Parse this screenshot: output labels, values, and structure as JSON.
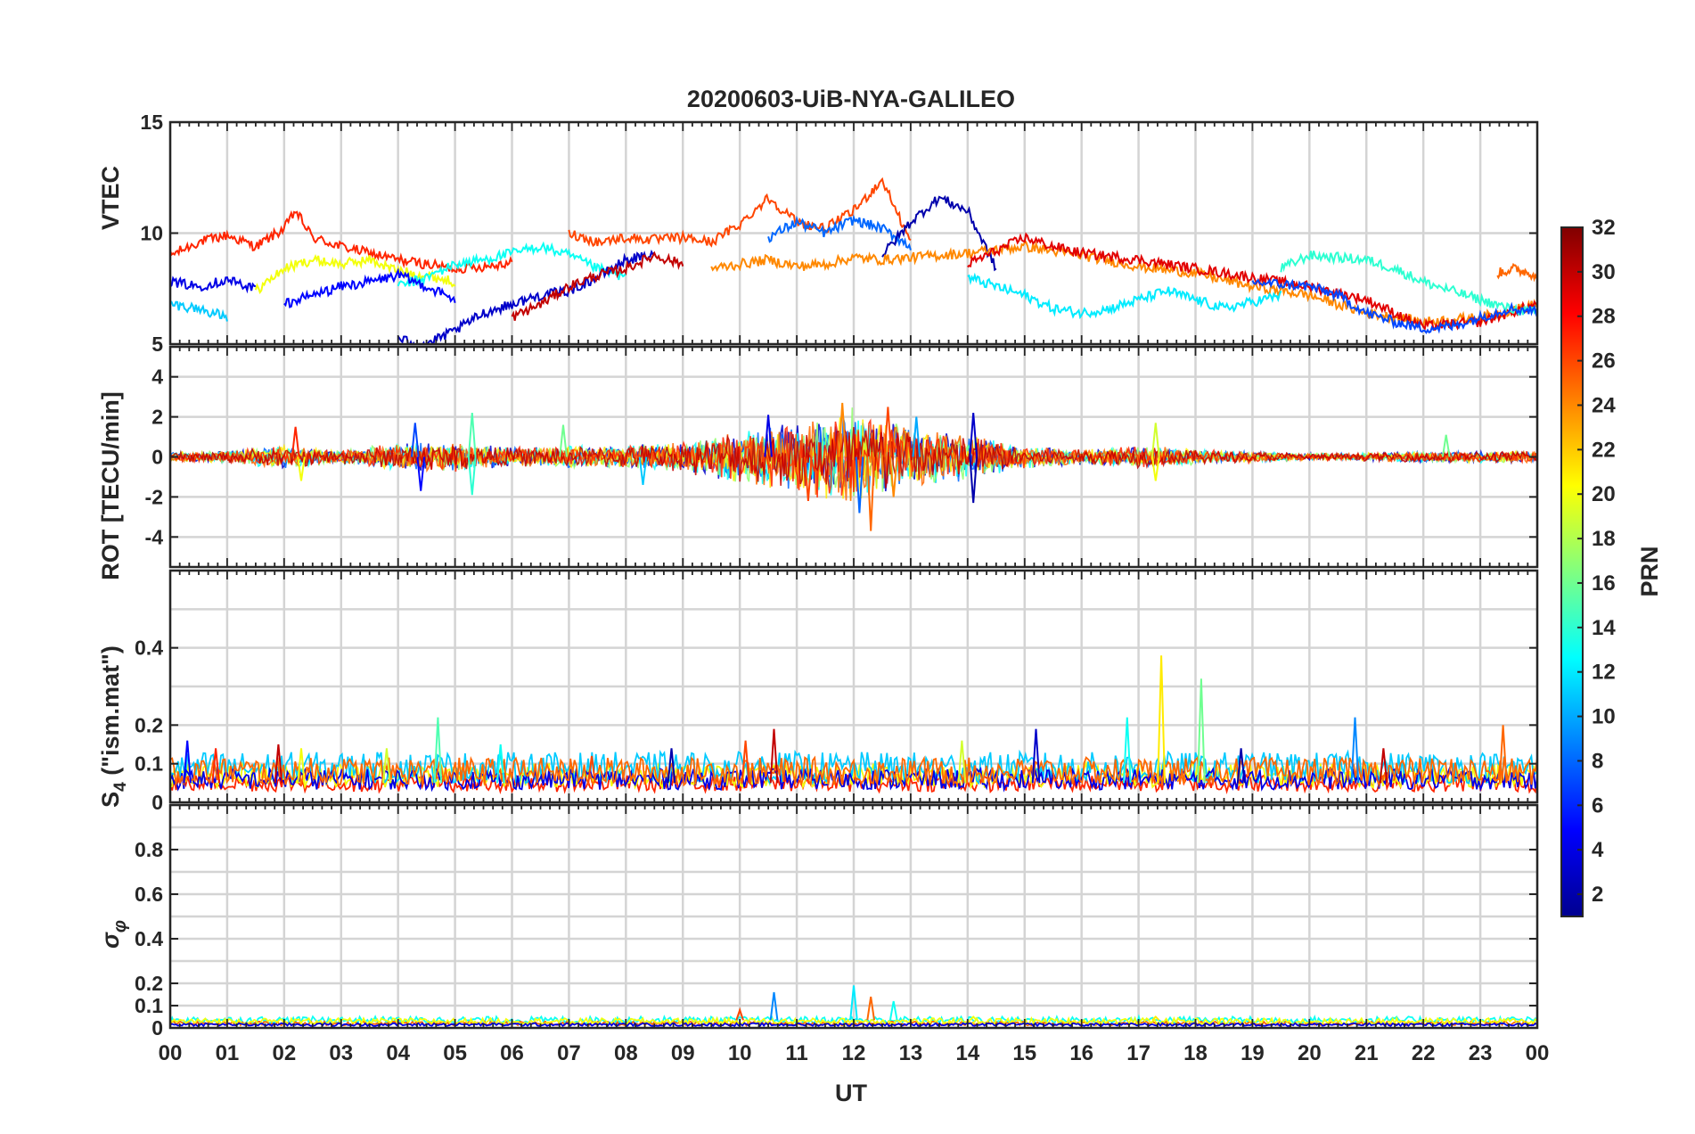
{
  "chart_data": {
    "type": "line",
    "title": "20200603-UiB-NYA-GALILEO",
    "xlabel": "UT",
    "xlim": [
      0,
      24
    ],
    "x_tick_labels": [
      "00",
      "01",
      "02",
      "03",
      "04",
      "05",
      "06",
      "07",
      "08",
      "09",
      "10",
      "11",
      "12",
      "13",
      "14",
      "15",
      "16",
      "17",
      "18",
      "19",
      "20",
      "21",
      "22",
      "23",
      "00"
    ],
    "grid": true,
    "colorbar": {
      "label": "PRN",
      "range": [
        1,
        32
      ],
      "ticks": [
        "2",
        "4",
        "6",
        "8",
        "10",
        "12",
        "14",
        "16",
        "18",
        "20",
        "22",
        "24",
        "26",
        "28",
        "30",
        "32"
      ],
      "colormap": [
        "#00008f",
        "#0000ff",
        "#0080ff",
        "#00ffff",
        "#80ff80",
        "#ffff00",
        "#ff8000",
        "#ff0000",
        "#800000"
      ]
    },
    "panels": [
      {
        "ylabel": "VTEC",
        "ylim": [
          5,
          15
        ],
        "yticks": [
          "5",
          "10",
          "15"
        ],
        "series": [
          {
            "prn": 27,
            "x": [
              0,
              0.5,
              1,
              1.5,
              2,
              2.2,
              2.5,
              3,
              3.5,
              4,
              4.5,
              5,
              5.5,
              6
            ],
            "y": [
              9.0,
              9.6,
              9.9,
              9.4,
              10.2,
              11.0,
              9.8,
              9.4,
              9.1,
              8.8,
              8.6,
              8.4,
              8.5,
              8.7
            ]
          },
          {
            "prn": 20,
            "x": [
              1.5,
              2,
              2.5,
              3,
              3.5,
              4,
              4.5,
              5
            ],
            "y": [
              7.4,
              8.4,
              8.8,
              8.6,
              8.8,
              8.3,
              8.1,
              7.8
            ]
          },
          {
            "prn": 4,
            "x": [
              0,
              0.5,
              1,
              1.5
            ],
            "y": [
              7.8,
              7.6,
              7.9,
              7.5
            ]
          },
          {
            "prn": 11,
            "x": [
              0,
              0.5,
              1
            ],
            "y": [
              6.8,
              6.6,
              6.2
            ]
          },
          {
            "prn": 13,
            "x": [
              4,
              4.5,
              5,
              5.5,
              6,
              6.5,
              7,
              7.5,
              8
            ],
            "y": [
              7.6,
              8.0,
              8.6,
              8.8,
              9.1,
              9.4,
              9.0,
              8.4,
              8.0
            ]
          },
          {
            "prn": 5,
            "x": [
              2,
              2.5,
              3,
              3.5,
              4,
              4.5,
              5
            ],
            "y": [
              6.8,
              7.2,
              7.6,
              7.8,
              8.1,
              7.6,
              7.0
            ]
          },
          {
            "prn": 3,
            "x": [
              4,
              4.5,
              5,
              5.5,
              6,
              6.5,
              7,
              7.5,
              8,
              8.5
            ],
            "y": [
              5.2,
              5.0,
              5.6,
              6.4,
              6.8,
              7.2,
              7.4,
              8.0,
              8.8,
              9.0
            ]
          },
          {
            "prn": 26,
            "x": [
              7,
              7.5,
              8,
              8.5,
              9,
              9.5,
              10,
              10.5,
              11,
              11.5,
              12,
              12.5,
              13
            ],
            "y": [
              10.0,
              9.6,
              9.8,
              9.7,
              9.8,
              9.6,
              10.4,
              11.6,
              10.5,
              10.2,
              11.0,
              12.4,
              9.6
            ]
          },
          {
            "prn": 30,
            "x": [
              6,
              6.5,
              7,
              7.5,
              8,
              8.5,
              9
            ],
            "y": [
              6.2,
              6.8,
              7.6,
              8.1,
              8.4,
              9.0,
              8.6
            ]
          },
          {
            "prn": 8,
            "x": [
              10.5,
              11,
              11.5,
              12,
              12.5,
              13
            ],
            "y": [
              9.8,
              10.5,
              10.0,
              10.6,
              10.2,
              9.4
            ]
          },
          {
            "prn": 2,
            "x": [
              12.5,
              13,
              13.5,
              14,
              14.5
            ],
            "y": [
              9.0,
              10.5,
              11.6,
              11.0,
              8.4
            ]
          },
          {
            "prn": 24,
            "x": [
              9.5,
              10,
              10.5,
              11,
              11.5,
              12,
              12.5,
              13,
              14,
              15,
              16,
              17,
              18,
              19,
              20,
              21,
              22,
              23,
              24
            ],
            "y": [
              8.4,
              8.6,
              8.8,
              8.5,
              8.6,
              8.9,
              8.8,
              8.9,
              9.1,
              9.4,
              9.0,
              8.5,
              8.2,
              7.6,
              7.2,
              6.4,
              6.0,
              6.2,
              6.8
            ]
          },
          {
            "prn": 12,
            "x": [
              14,
              14.5,
              15,
              15.5,
              16,
              16.5,
              17,
              17.5,
              18,
              18.5,
              19,
              19.5
            ],
            "y": [
              8.0,
              7.6,
              7.2,
              6.6,
              6.4,
              6.6,
              7.0,
              7.4,
              7.0,
              6.6,
              6.9,
              7.2
            ]
          },
          {
            "prn": 29,
            "x": [
              14,
              15,
              15.5,
              16,
              17,
              18,
              19,
              20,
              21,
              22,
              23,
              24
            ],
            "y": [
              8.6,
              9.8,
              9.4,
              9.1,
              8.8,
              8.4,
              8.0,
              7.6,
              7.0,
              5.8,
              6.0,
              6.8
            ]
          },
          {
            "prn": 14,
            "x": [
              19.5,
              20,
              20.5,
              21,
              21.5,
              22,
              22.5,
              23,
              23.5,
              24
            ],
            "y": [
              8.4,
              9.0,
              8.9,
              8.8,
              8.4,
              7.8,
              7.4,
              7.0,
              6.6,
              6.4
            ]
          },
          {
            "prn": 7,
            "x": [
              19,
              20,
              20.5,
              21,
              21.5,
              22,
              22.5,
              23,
              23.5,
              24
            ],
            "y": [
              7.8,
              7.6,
              7.2,
              6.4,
              6.0,
              5.7,
              5.8,
              6.2,
              6.6,
              6.5
            ]
          },
          {
            "prn": 25,
            "x": [
              23.3,
              23.6,
              24
            ],
            "y": [
              8.2,
              8.4,
              8.1
            ]
          }
        ]
      },
      {
        "ylabel": "ROT [TECU/min]",
        "ylim": [
          -5.5,
          5.5
        ],
        "yticks": [
          "-4",
          "-2",
          "0",
          "2",
          "4"
        ],
        "envelope": {
          "x": [
            0,
            1,
            2,
            3,
            4,
            5,
            6,
            7,
            8,
            9,
            10,
            11,
            12,
            13,
            14,
            15,
            16,
            17,
            18,
            19,
            20,
            21,
            22,
            23,
            24
          ],
          "amplitude": [
            0.3,
            0.3,
            0.6,
            0.4,
            0.7,
            0.8,
            0.5,
            0.6,
            0.6,
            0.8,
            1.4,
            1.8,
            2.6,
            1.6,
            1.2,
            0.6,
            0.4,
            0.6,
            0.4,
            0.3,
            0.2,
            0.2,
            0.3,
            0.3,
            0.3
          ]
        },
        "spikes": [
          {
            "x": 2.2,
            "y": 1.5,
            "prn": 27
          },
          {
            "x": 2.3,
            "y": -1.2,
            "prn": 20
          },
          {
            "x": 4.3,
            "y": 1.7,
            "prn": 7
          },
          {
            "x": 4.4,
            "y": -1.7,
            "prn": 5
          },
          {
            "x": 5.3,
            "y": 2.2,
            "prn": 15
          },
          {
            "x": 5.3,
            "y": -1.9,
            "prn": 14
          },
          {
            "x": 6.9,
            "y": 1.6,
            "prn": 16
          },
          {
            "x": 8.3,
            "y": -1.4,
            "prn": 11
          },
          {
            "x": 10.5,
            "y": 2.1,
            "prn": 4
          },
          {
            "x": 11.2,
            "y": -2.2,
            "prn": 26
          },
          {
            "x": 11.8,
            "y": 2.7,
            "prn": 24
          },
          {
            "x": 12.1,
            "y": -2.8,
            "prn": 8
          },
          {
            "x": 12.3,
            "y": -3.7,
            "prn": 25
          },
          {
            "x": 12.6,
            "y": 2.5,
            "prn": 26
          },
          {
            "x": 12.7,
            "y": -2.0,
            "prn": 24
          },
          {
            "x": 13.1,
            "y": 2.0,
            "prn": 10
          },
          {
            "x": 14.1,
            "y": 2.2,
            "prn": 3
          },
          {
            "x": 14.1,
            "y": -2.3,
            "prn": 2
          },
          {
            "x": 17.3,
            "y": 1.7,
            "prn": 19
          },
          {
            "x": 17.3,
            "y": -1.2,
            "prn": 20
          },
          {
            "x": 22.4,
            "y": 1.1,
            "prn": 16
          }
        ]
      },
      {
        "ylabel": "S4 (\"ism.mat\")",
        "ylim": [
          0,
          0.6
        ],
        "yticks": [
          "0",
          "0.1",
          "0.2",
          "0.4"
        ],
        "baseline": [
          {
            "prn": 27,
            "level": 0.05
          },
          {
            "prn": 20,
            "level": 0.07
          },
          {
            "prn": 11,
            "level": 0.09
          },
          {
            "prn": 4,
            "level": 0.06
          },
          {
            "prn": 25,
            "level": 0.08
          }
        ],
        "spikes": [
          {
            "x": 0.3,
            "y": 0.16,
            "prn": 5
          },
          {
            "x": 0.8,
            "y": 0.14,
            "prn": 27
          },
          {
            "x": 1.9,
            "y": 0.15,
            "prn": 30
          },
          {
            "x": 2.3,
            "y": 0.14,
            "prn": 20
          },
          {
            "x": 3.8,
            "y": 0.14,
            "prn": 19
          },
          {
            "x": 4.7,
            "y": 0.22,
            "prn": 15
          },
          {
            "x": 5.8,
            "y": 0.15,
            "prn": 13
          },
          {
            "x": 7.4,
            "y": 0.12,
            "prn": 26
          },
          {
            "x": 8.8,
            "y": 0.14,
            "prn": 2
          },
          {
            "x": 10.1,
            "y": 0.16,
            "prn": 26
          },
          {
            "x": 10.6,
            "y": 0.19,
            "prn": 30
          },
          {
            "x": 13.9,
            "y": 0.16,
            "prn": 19
          },
          {
            "x": 15.2,
            "y": 0.19,
            "prn": 3
          },
          {
            "x": 16.8,
            "y": 0.22,
            "prn": 13
          },
          {
            "x": 17.4,
            "y": 0.38,
            "prn": 21
          },
          {
            "x": 18.1,
            "y": 0.32,
            "prn": 16
          },
          {
            "x": 18.8,
            "y": 0.14,
            "prn": 2
          },
          {
            "x": 20.8,
            "y": 0.22,
            "prn": 9
          },
          {
            "x": 21.3,
            "y": 0.14,
            "prn": 30
          },
          {
            "x": 23.4,
            "y": 0.2,
            "prn": 25
          }
        ]
      },
      {
        "ylabel": "σφ",
        "ylim": [
          0,
          1
        ],
        "yticks": [
          "0",
          "0.1",
          "0.2",
          "0.4",
          "0.6",
          "0.8"
        ],
        "baseline": [
          {
            "prn": 13,
            "level": 0.035
          },
          {
            "prn": 25,
            "level": 0.02
          },
          {
            "prn": 20,
            "level": 0.03
          },
          {
            "prn": 4,
            "level": 0.015
          }
        ],
        "spikes": [
          {
            "x": 10.0,
            "y": 0.08,
            "prn": 26
          },
          {
            "x": 10.6,
            "y": 0.16,
            "prn": 9
          },
          {
            "x": 12.0,
            "y": 0.19,
            "prn": 12
          },
          {
            "x": 12.3,
            "y": 0.14,
            "prn": 25
          },
          {
            "x": 12.7,
            "y": 0.12,
            "prn": 13
          },
          {
            "x": 14.1,
            "y": 0.05,
            "prn": 20
          },
          {
            "x": 17.3,
            "y": 0.05,
            "prn": 21
          }
        ]
      }
    ]
  }
}
